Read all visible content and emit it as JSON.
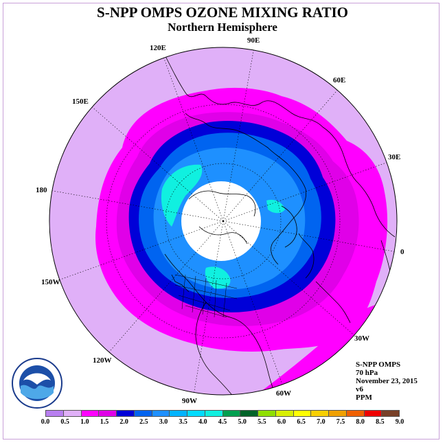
{
  "title": "S-NPP OMPS OZONE MIXING RATIO",
  "subtitle": "Northern Hemisphere",
  "longitude_labels": [
    {
      "text": "90E",
      "lon": 90
    },
    {
      "text": "60E",
      "lon": 60
    },
    {
      "text": "30E",
      "lon": 30
    },
    {
      "text": "0",
      "lon": 0
    },
    {
      "text": "30W",
      "lon": -30
    },
    {
      "text": "60W",
      "lon": -60
    },
    {
      "text": "90W",
      "lon": -90
    },
    {
      "text": "120W",
      "lon": -120
    },
    {
      "text": "150W",
      "lon": -150
    },
    {
      "text": "180",
      "lon": 180
    },
    {
      "text": "150E",
      "lon": 150
    },
    {
      "text": "120E",
      "lon": 120
    }
  ],
  "info": {
    "instrument": "S-NPP OMPS",
    "level": "70 hPa",
    "date": "November 23, 2015",
    "version": "v6",
    "units": "PPM"
  },
  "colorbar": {
    "colors": [
      "#b87ff0",
      "#e0b0f8",
      "#ff00ff",
      "#e000e8",
      "#0000d8",
      "#0064f0",
      "#1e90ff",
      "#00b4ff",
      "#00dcff",
      "#10f0e0",
      "#00a050",
      "#006428",
      "#90e000",
      "#d8f000",
      "#ffff00",
      "#f8d000",
      "#f0a000",
      "#f06000",
      "#f00000",
      "#784028"
    ],
    "ticks": [
      "0.0",
      "0.5",
      "1.0",
      "1.5",
      "2.0",
      "2.5",
      "3.0",
      "3.5",
      "4.0",
      "4.5",
      "5.0",
      "5.5",
      "6.0",
      "6.5",
      "7.0",
      "7.5",
      "8.0",
      "8.5",
      "9.0"
    ]
  },
  "map": {
    "projection": "north polar stereographic",
    "rings": [
      {
        "range": "0.5-1.0",
        "color": "#e0b0f8"
      },
      {
        "range": "1.0-1.5",
        "color": "#ff00ff"
      },
      {
        "range": "1.5-2.0",
        "color": "#e000e8"
      },
      {
        "range": "2.0-2.5",
        "color": "#0000d8"
      },
      {
        "range": "2.5-3.0",
        "color": "#0064f0"
      },
      {
        "range": "3.0-3.5",
        "color": "#1e90ff"
      },
      {
        "range": "3.5-4.0",
        "color": "#10f0e0"
      }
    ],
    "no_data_color": "#ffffff",
    "logo_icon": "noaa-logo-icon"
  }
}
